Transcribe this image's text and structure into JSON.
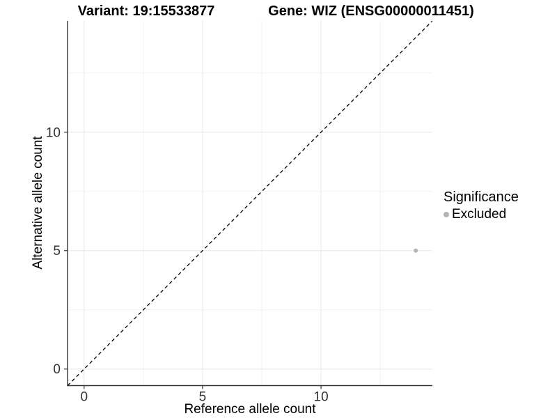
{
  "figure": {
    "title_left": "Variant: 19:15533877",
    "title_right": "Gene: WIZ (ENSG00000011451)"
  },
  "legend": {
    "title": "Significance",
    "items": [
      {
        "label": "Excluded",
        "color": "#b5b5b5",
        "marker": "circle"
      }
    ]
  },
  "chart_data": {
    "type": "scatter",
    "title": "Variant: 19:15533877 — Gene: WIZ (ENSG00000011451)",
    "xlabel": "Reference allele count",
    "ylabel": "Alternative allele count",
    "xlim": [
      -0.7,
      14.7
    ],
    "ylim": [
      -0.7,
      14.7
    ],
    "x_major_ticks": [
      0,
      5,
      10
    ],
    "y_major_ticks": [
      0,
      5,
      10
    ],
    "x_minor_ticks": [
      2.5,
      7.5,
      12.5
    ],
    "y_minor_ticks": [
      2.5,
      7.5,
      12.5
    ],
    "grid": "major-and-minor",
    "legend_position": "right",
    "series": [
      {
        "name": "Excluded",
        "color": "#b5b5b5",
        "points": [
          {
            "x": 14,
            "y": 5
          }
        ]
      }
    ],
    "reference_line": {
      "type": "identity",
      "slope": 1,
      "intercept": 0,
      "style": "dashed",
      "color": "#000000"
    }
  },
  "colors": {
    "background": "#ffffff",
    "major_grid": "#e7e7e7",
    "minor_grid": "#f2f2f2",
    "axis_line": "#333333",
    "tick_label": "#333333",
    "point": "#b5b5b5"
  }
}
